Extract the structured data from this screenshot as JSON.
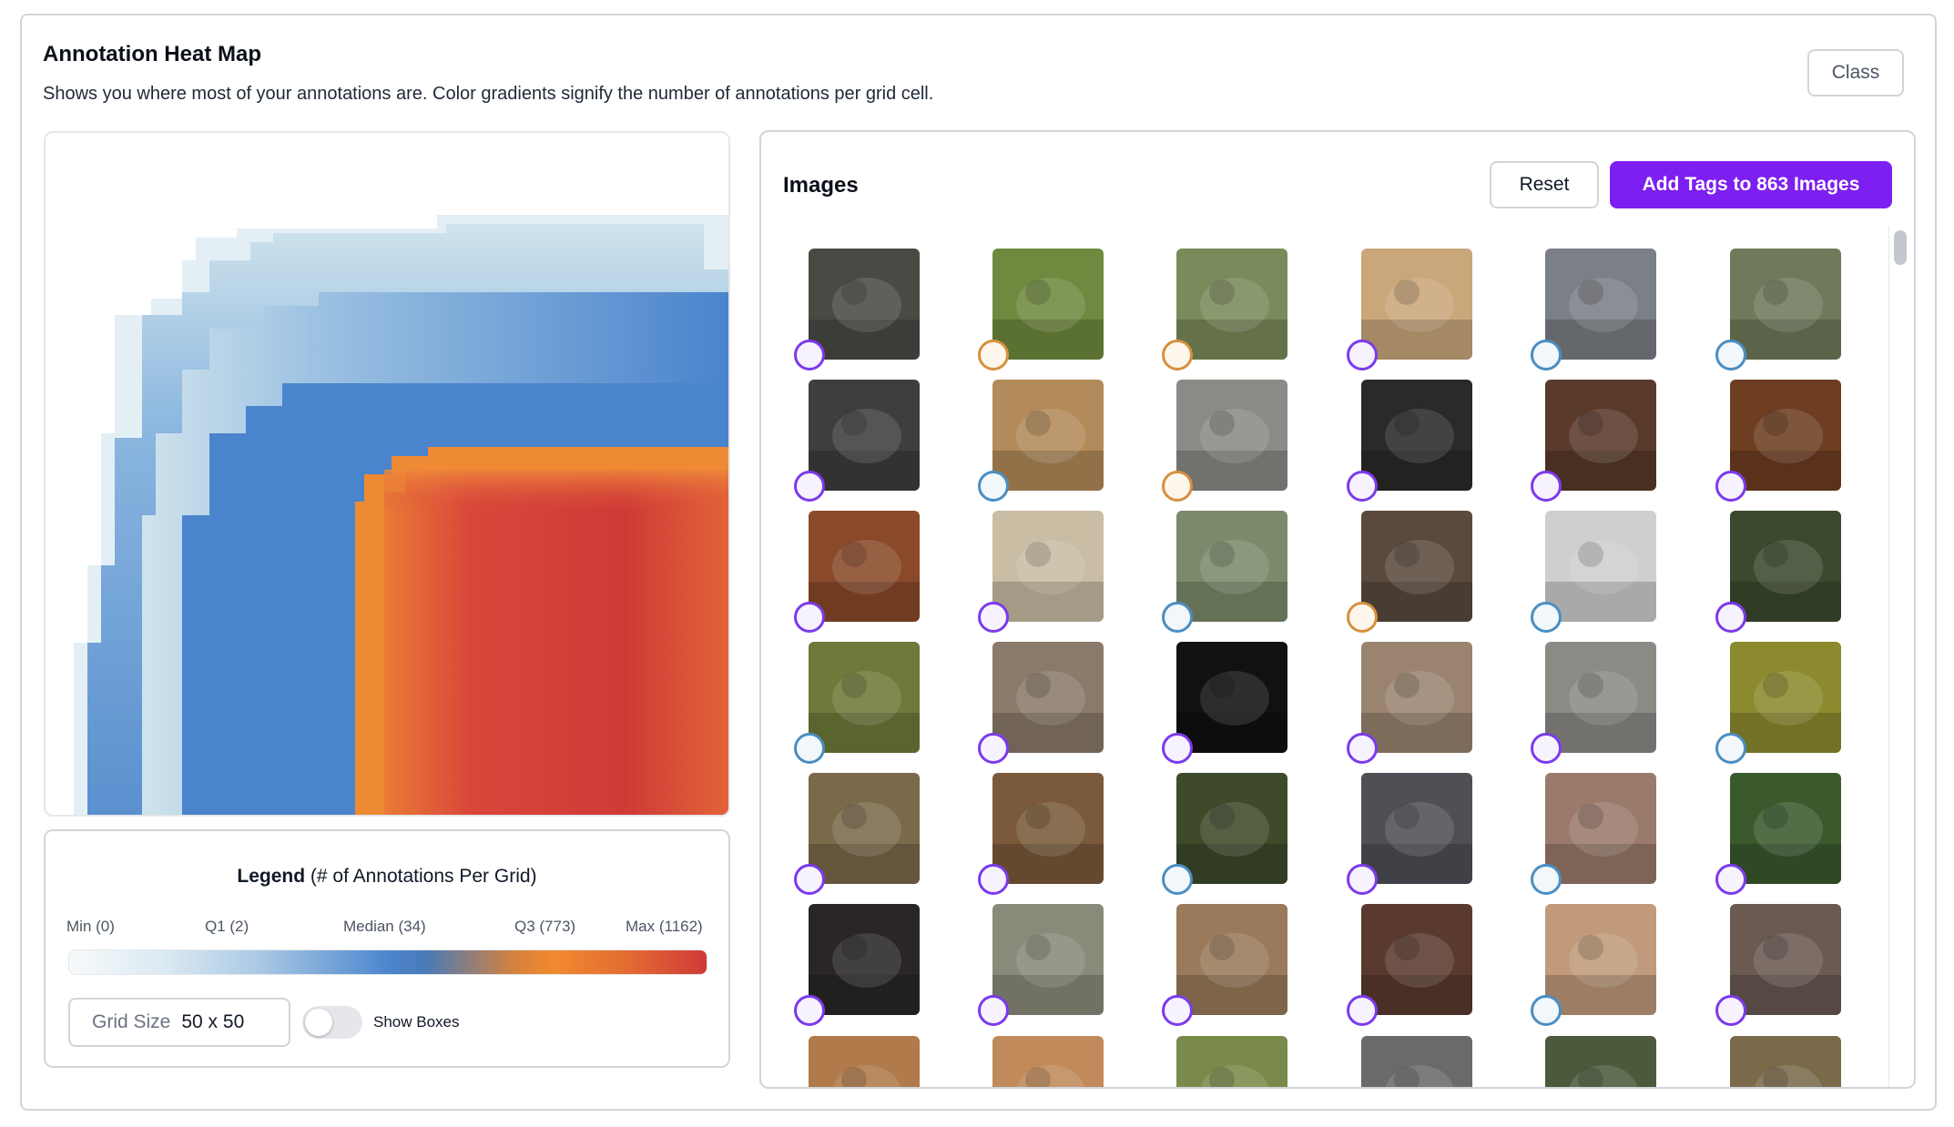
{
  "header": {
    "title": "Annotation Heat Map",
    "subtitle": "Shows you where most of your annotations are. Color gradients signify the number of annotations per grid cell.",
    "class_button": "Class"
  },
  "legend": {
    "title_bold": "Legend",
    "title_rest": " (# of Annotations Per Grid)",
    "ticks": [
      "Min (0)",
      "Q1 (2)",
      "Median (34)",
      "Q3 (773)",
      "Max (1162)"
    ],
    "colors": [
      "#f7fafb",
      "#a9c9e4",
      "#4c86cd",
      "#f08a2f",
      "#cf3a36"
    ]
  },
  "controls": {
    "grid_size_label": "Grid Size",
    "grid_size_value": "50 x 50",
    "show_boxes_label": "Show Boxes",
    "show_boxes_on": false
  },
  "images": {
    "title": "Images",
    "reset_label": "Reset",
    "add_tags_label": "Add Tags to 863 Images",
    "rows": [
      [
        "purple",
        "orange",
        "orange",
        "purple",
        "blue",
        "blue"
      ],
      [
        "purple",
        "blue",
        "orange",
        "purple",
        "purple",
        "purple"
      ],
      [
        "purple",
        "purple",
        "blue",
        "orange",
        "blue",
        "purple"
      ],
      [
        "blue",
        "purple",
        "purple",
        "purple",
        "purple",
        "blue"
      ],
      [
        "purple",
        "purple",
        "blue",
        "purple",
        "blue",
        "purple"
      ],
      [
        "purple",
        "purple",
        "purple",
        "purple",
        "blue",
        "purple"
      ],
      [
        "none",
        "none",
        "none",
        "none",
        "none",
        "none"
      ]
    ],
    "thumb_colors": [
      [
        "#4a4a45",
        "#6f8a3e",
        "#7a8a5a",
        "#caa77a",
        "#7b7f86",
        "#6f7a5a"
      ],
      [
        "#3d3f3c",
        "#b38a5a",
        "#8a8a86",
        "#2a2a28",
        "#5a3a2a",
        "#6e3e22"
      ],
      [
        "#8a4a2a",
        "#c9bda4",
        "#7b8a6a",
        "#5a4a3e",
        "#cfcfcf",
        "#3b4a2e"
      ],
      [
        "#6e7a3a",
        "#8a7a6a",
        "#111111",
        "#9a8470",
        "#8c8a85",
        "#8b8a2e"
      ],
      [
        "#7a6a4a",
        "#7a5a3a",
        "#3e4a2a",
        "#4e5056",
        "#9a7a6a",
        "#3a5a2e"
      ],
      [
        "#2a2626",
        "#8a8a7a",
        "#9a7a5a",
        "#5a3a2e",
        "#c09a7a",
        "#6a5a52"
      ],
      [
        "#b07a4a",
        "#c08a5a",
        "#7a8a4a",
        "#6a6a6a",
        "#4a5a3a",
        "#7a6a4a"
      ]
    ]
  },
  "heatmap": {
    "grid_cells": "50 x 50",
    "colors": {
      "min": "#f7fafb",
      "q1": "#bcd7e5",
      "median": "#4b84c9",
      "q3": "#ef8a34",
      "max": "#cd3b35"
    }
  }
}
